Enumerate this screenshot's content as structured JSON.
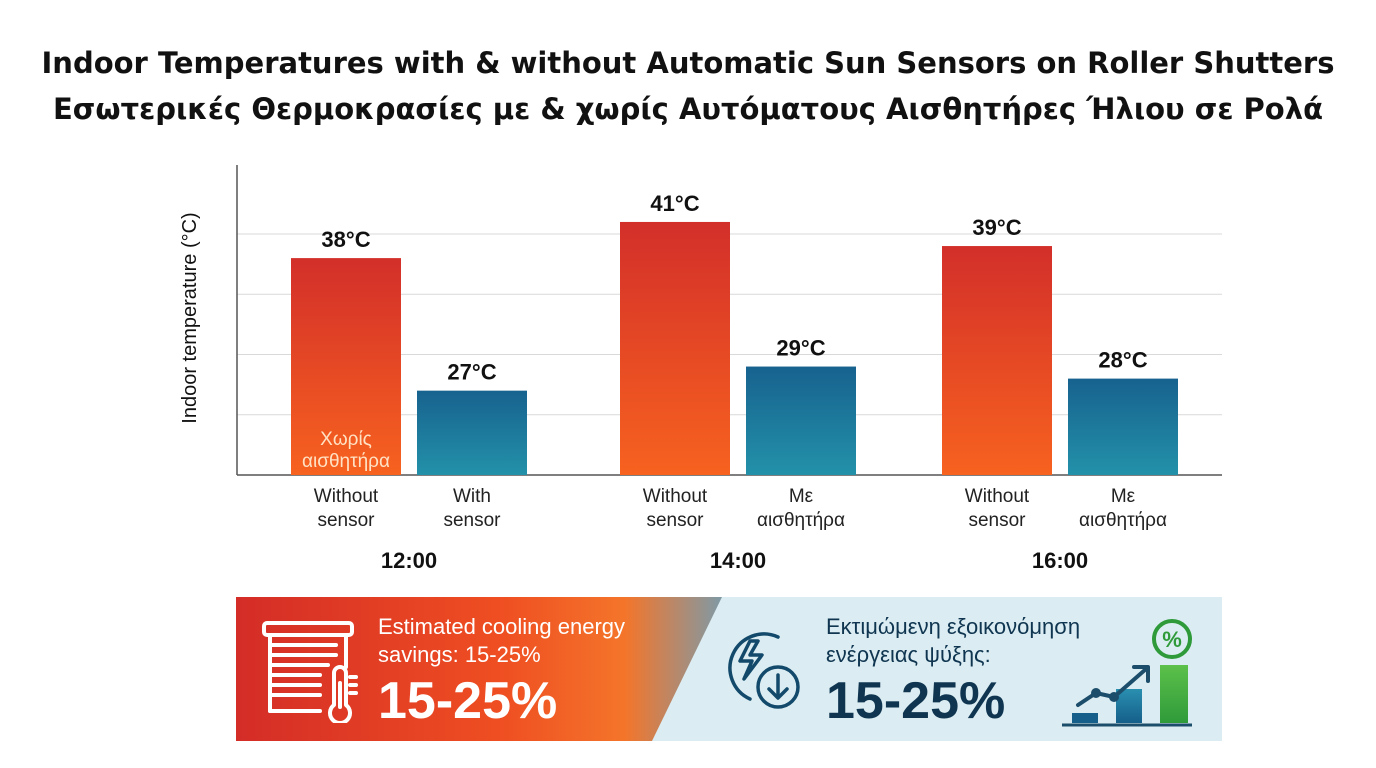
{
  "title": {
    "line1": "Indoor Temperatures with & without Automatic Sun Sensors on Roller Shutters",
    "line2": "Εσωτερικές Θερμοκρασίες με & χωρίς Αυτόματους Αισθητήρες Ήλιου σε Ρολά"
  },
  "chart_data": {
    "type": "bar",
    "ylabel": "Indoor temperature (°C)",
    "groups": [
      {
        "label": "12:00",
        "bars": [
          {
            "category": [
              "Without",
              "sensor"
            ],
            "value": 38,
            "label": "38°C",
            "series": "without"
          },
          {
            "category": [
              "With",
              "sensor"
            ],
            "value": 27,
            "label": "27°C",
            "series": "with"
          }
        ]
      },
      {
        "label": "14:00",
        "bars": [
          {
            "category": [
              "Without",
              "sensor"
            ],
            "value": 41,
            "label": "41°C",
            "series": "without"
          },
          {
            "category": [
              "Με",
              "αισθητήρα"
            ],
            "value": 29,
            "label": "29°C",
            "series": "with"
          }
        ]
      },
      {
        "label": "16:00",
        "bars": [
          {
            "category": [
              "Without",
              "sensor"
            ],
            "value": 39,
            "label": "39°C",
            "series": "without"
          },
          {
            "category": [
              "Με",
              "αισθητήρα"
            ],
            "value": 28,
            "label": "28°C",
            "series": "with"
          }
        ]
      }
    ],
    "in_bar_label": [
      "Χωρίς",
      "αισθητήρα"
    ],
    "grid": true,
    "colors": {
      "without_top": "#d32f2a",
      "without_bottom": "#f7621f",
      "with_top": "#17628f",
      "with_bottom": "#2391a9"
    }
  },
  "savings": {
    "left": {
      "caption_line1": "Estimated cooling energy",
      "caption_line2": "savings: 15-25%",
      "value": "15-25%",
      "icon": "shutter-thermometer-icon"
    },
    "right": {
      "caption_line1": "Εκτιμώμενη εξοικονόμηση",
      "caption_line2": "ενέργειας ψύξης:",
      "value": "15-25%",
      "icon": "energy-down-icon",
      "icon2": "savings-growth-icon",
      "percent_badge": "%"
    }
  }
}
